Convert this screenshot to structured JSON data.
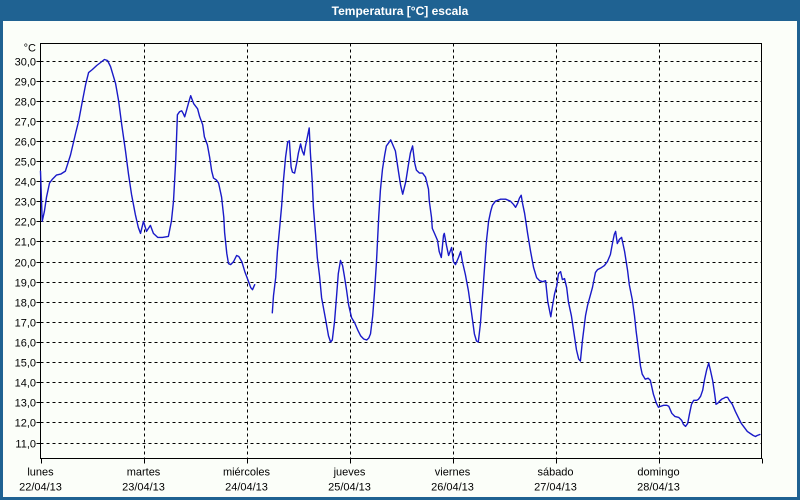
{
  "window": {
    "title": "Temperatura [°C] escala"
  },
  "colors": {
    "chrome": "#1f6292",
    "title_text": "#ffffff",
    "panel_background": "#fbfef9",
    "grid": "#000000",
    "axis": "#000000",
    "line": "#1a1ac8",
    "label_text": "#000000"
  },
  "chart_data": {
    "type": "line",
    "title": "Temperatura [°C] escala",
    "y_unit": "°C",
    "ylabel": "",
    "xlabel": "",
    "ylim": [
      11,
      30
    ],
    "y_tick_step": 1,
    "decimal_separator": ",",
    "grid": "dashed",
    "legend": "none",
    "x_hours_range": [
      0,
      168
    ],
    "x_days": [
      {
        "name": "lunes",
        "date": "22/04/13"
      },
      {
        "name": "martes",
        "date": "23/04/13"
      },
      {
        "name": "miércoles",
        "date": "24/04/13"
      },
      {
        "name": "jueves",
        "date": "25/04/13"
      },
      {
        "name": "viernes",
        "date": "26/04/13"
      },
      {
        "name": "sábado",
        "date": "27/04/13"
      },
      {
        "name": "domingo",
        "date": "28/04/13"
      }
    ],
    "series_name": "Temperatura",
    "segments": [
      [
        [
          0,
          24.5
        ],
        [
          0.4,
          22.0
        ],
        [
          0.9,
          22.5
        ],
        [
          1.4,
          23.2
        ],
        [
          2.1,
          23.9
        ],
        [
          2.8,
          24.1
        ],
        [
          3.7,
          24.3
        ],
        [
          4.7,
          24.35
        ],
        [
          5.8,
          24.5
        ],
        [
          7,
          25.3
        ],
        [
          8.2,
          26.4
        ],
        [
          8.9,
          27.0
        ],
        [
          9.6,
          27.8
        ],
        [
          10.5,
          28.8
        ],
        [
          11.2,
          29.4
        ],
        [
          12.1,
          29.55
        ],
        [
          13.1,
          29.75
        ],
        [
          14,
          29.9
        ],
        [
          14.9,
          30.05
        ],
        [
          15.6,
          30.0
        ],
        [
          16.3,
          29.7
        ],
        [
          17.5,
          28.85
        ],
        [
          18.2,
          28.0
        ],
        [
          18.9,
          26.85
        ],
        [
          19.8,
          25.5
        ],
        [
          20.5,
          24.35
        ],
        [
          21.2,
          23.35
        ],
        [
          22.1,
          22.35
        ],
        [
          22.8,
          21.7
        ],
        [
          23.3,
          21.4
        ],
        [
          24,
          22.0
        ],
        [
          24.7,
          21.5
        ],
        [
          25.6,
          21.8
        ],
        [
          26.3,
          21.4
        ],
        [
          27.3,
          21.2
        ],
        [
          28.4,
          21.2
        ],
        [
          29.8,
          21.25
        ],
        [
          30.5,
          22.0
        ],
        [
          31,
          23.0
        ],
        [
          31.5,
          25.0
        ],
        [
          31.9,
          27.3
        ],
        [
          32.4,
          27.45
        ],
        [
          32.9,
          27.5
        ],
        [
          33.3,
          27.35
        ],
        [
          33.6,
          27.2
        ],
        [
          34,
          27.5
        ],
        [
          34.5,
          27.9
        ],
        [
          35,
          28.25
        ],
        [
          35.7,
          27.85
        ],
        [
          36.6,
          27.6
        ],
        [
          37.1,
          27.2
        ],
        [
          37.8,
          26.8
        ],
        [
          38.2,
          26.2
        ],
        [
          38.9,
          25.8
        ],
        [
          39.4,
          25.2
        ],
        [
          39.9,
          24.5
        ],
        [
          40.3,
          24.15
        ],
        [
          41,
          24.05
        ],
        [
          41.5,
          23.9
        ],
        [
          42.2,
          23.2
        ],
        [
          42.7,
          22.2
        ],
        [
          42.9,
          21.45
        ],
        [
          43.4,
          20.4
        ],
        [
          43.8,
          19.9
        ],
        [
          44.3,
          19.85
        ],
        [
          45,
          20.0
        ],
        [
          45.7,
          20.3
        ],
        [
          46.2,
          20.25
        ],
        [
          46.9,
          20.0
        ],
        [
          47.6,
          19.5
        ],
        [
          48.3,
          19.1
        ],
        [
          49,
          18.7
        ],
        [
          49.4,
          18.6
        ],
        [
          49.9,
          18.85
        ]
      ],
      [
        [
          54,
          17.45
        ],
        [
          54.3,
          18.3
        ],
        [
          54.8,
          19.2
        ],
        [
          55.2,
          20.5
        ],
        [
          55.7,
          21.6
        ],
        [
          56.2,
          22.8
        ],
        [
          56.6,
          24.0
        ],
        [
          57.1,
          25.2
        ],
        [
          57.6,
          25.95
        ],
        [
          58,
          26.0
        ],
        [
          58.4,
          24.7
        ],
        [
          58.7,
          24.45
        ],
        [
          59.2,
          24.4
        ],
        [
          59.7,
          24.9
        ],
        [
          60.1,
          25.4
        ],
        [
          60.6,
          25.85
        ],
        [
          61,
          25.5
        ],
        [
          61.4,
          25.3
        ],
        [
          61.7,
          25.7
        ],
        [
          62.2,
          26.2
        ],
        [
          62.6,
          26.65
        ],
        [
          62.9,
          25.4
        ],
        [
          63.3,
          24.0
        ],
        [
          63.6,
          22.7
        ],
        [
          64.1,
          21.35
        ],
        [
          64.5,
          20.2
        ],
        [
          65,
          19.3
        ],
        [
          65.5,
          18.2
        ],
        [
          66.4,
          17.15
        ],
        [
          67.1,
          16.3
        ],
        [
          67.6,
          16.0
        ],
        [
          68,
          16.1
        ],
        [
          68.5,
          17.0
        ],
        [
          69,
          18.3
        ],
        [
          69.4,
          19.4
        ],
        [
          69.9,
          20.05
        ],
        [
          70.4,
          19.8
        ],
        [
          70.8,
          19.3
        ],
        [
          71.3,
          18.6
        ],
        [
          71.8,
          17.85
        ],
        [
          72.5,
          17.2
        ],
        [
          73.2,
          16.95
        ],
        [
          73.9,
          16.6
        ],
        [
          74.6,
          16.3
        ],
        [
          75.3,
          16.15
        ],
        [
          76,
          16.1
        ],
        [
          76.5,
          16.2
        ],
        [
          76.9,
          16.4
        ],
        [
          77.4,
          17.3
        ],
        [
          77.8,
          18.4
        ],
        [
          78.3,
          20.0
        ],
        [
          78.8,
          22.2
        ],
        [
          79.2,
          23.55
        ],
        [
          79.7,
          24.6
        ],
        [
          80.2,
          25.3
        ],
        [
          80.6,
          25.75
        ],
        [
          81.1,
          25.9
        ],
        [
          81.6,
          26.05
        ],
        [
          82,
          25.85
        ],
        [
          82.7,
          25.5
        ],
        [
          83.4,
          24.5
        ],
        [
          83.9,
          23.8
        ],
        [
          84.4,
          23.35
        ],
        [
          85.1,
          23.95
        ],
        [
          85.8,
          24.9
        ],
        [
          86.2,
          25.4
        ],
        [
          86.7,
          25.75
        ],
        [
          87.2,
          24.9
        ],
        [
          87.6,
          24.55
        ],
        [
          88.3,
          24.4
        ],
        [
          89,
          24.4
        ],
        [
          89.7,
          24.2
        ],
        [
          90.4,
          23.6
        ],
        [
          90.6,
          23.0
        ],
        [
          91.1,
          22.2
        ],
        [
          91.3,
          21.65
        ],
        [
          91.8,
          21.4
        ],
        [
          92.5,
          21.05
        ],
        [
          92.9,
          20.5
        ],
        [
          93.4,
          20.2
        ],
        [
          93.9,
          21.3
        ],
        [
          94.1,
          21.4
        ],
        [
          94.6,
          20.8
        ],
        [
          95.1,
          20.3
        ],
        [
          95.8,
          20.7
        ],
        [
          96.2,
          20.0
        ],
        [
          96.7,
          19.85
        ],
        [
          97.4,
          20.2
        ],
        [
          97.9,
          20.5
        ],
        [
          98.3,
          20.0
        ],
        [
          99,
          19.35
        ],
        [
          99.7,
          18.55
        ],
        [
          100.4,
          17.5
        ],
        [
          101.1,
          16.4
        ],
        [
          101.6,
          16.05
        ],
        [
          102,
          16.0
        ],
        [
          102.5,
          16.9
        ],
        [
          103,
          18.3
        ],
        [
          103.5,
          19.8
        ],
        [
          103.9,
          21.0
        ],
        [
          104.4,
          22.0
        ],
        [
          104.9,
          22.5
        ],
        [
          105.3,
          22.8
        ],
        [
          106,
          23.0
        ],
        [
          107.2,
          23.1
        ],
        [
          108.4,
          23.1
        ],
        [
          109.5,
          23.0
        ],
        [
          110.2,
          22.85
        ],
        [
          110.7,
          22.7
        ],
        [
          111.2,
          22.9
        ],
        [
          111.6,
          23.15
        ],
        [
          112,
          23.3
        ],
        [
          112.3,
          22.9
        ],
        [
          112.8,
          22.4
        ],
        [
          113.5,
          21.4
        ],
        [
          114.2,
          20.5
        ],
        [
          114.9,
          19.7
        ],
        [
          115.6,
          19.2
        ],
        [
          116.3,
          19.05
        ],
        [
          117,
          19.0
        ],
        [
          117.7,
          19.05
        ],
        [
          118.2,
          18.0
        ],
        [
          118.9,
          17.25
        ],
        [
          119.3,
          17.8
        ],
        [
          119.8,
          18.4
        ],
        [
          120.3,
          18.8
        ],
        [
          120.7,
          19.4
        ],
        [
          121.2,
          19.5
        ],
        [
          121.6,
          19.1
        ],
        [
          122.1,
          19.15
        ],
        [
          122.6,
          18.7
        ],
        [
          123,
          18.0
        ],
        [
          123.7,
          17.3
        ],
        [
          124.2,
          16.6
        ],
        [
          124.9,
          15.6
        ],
        [
          125.4,
          15.15
        ],
        [
          125.8,
          15.05
        ],
        [
          126.3,
          16.1
        ],
        [
          127,
          17.3
        ],
        [
          127.5,
          17.85
        ],
        [
          127.9,
          18.15
        ],
        [
          128.6,
          18.7
        ],
        [
          129.3,
          19.45
        ],
        [
          129.8,
          19.6
        ],
        [
          130.7,
          19.7
        ],
        [
          131.4,
          19.8
        ],
        [
          132.1,
          20.0
        ],
        [
          132.8,
          20.35
        ],
        [
          133.3,
          20.95
        ],
        [
          133.7,
          21.35
        ],
        [
          134,
          21.5
        ],
        [
          134.4,
          20.9
        ],
        [
          134.9,
          21.1
        ],
        [
          135.4,
          21.2
        ],
        [
          136.1,
          20.5
        ],
        [
          136.8,
          19.55
        ],
        [
          137.2,
          18.85
        ],
        [
          137.9,
          18.1
        ],
        [
          138.4,
          17.3
        ],
        [
          138.8,
          16.5
        ],
        [
          139.3,
          15.7
        ],
        [
          139.8,
          14.8
        ],
        [
          140.2,
          14.4
        ],
        [
          140.9,
          14.15
        ],
        [
          141.6,
          14.2
        ],
        [
          142.1,
          14.1
        ],
        [
          142.8,
          13.4
        ],
        [
          143.5,
          12.95
        ],
        [
          144,
          12.75
        ],
        [
          144.5,
          12.8
        ],
        [
          145.2,
          12.85
        ],
        [
          145.9,
          12.85
        ],
        [
          146.4,
          12.8
        ],
        [
          147.1,
          12.45
        ],
        [
          147.8,
          12.3
        ],
        [
          148.7,
          12.25
        ],
        [
          149.4,
          12.1
        ],
        [
          149.8,
          11.9
        ],
        [
          150.3,
          11.8
        ],
        [
          150.8,
          11.95
        ],
        [
          151.2,
          12.4
        ],
        [
          151.7,
          12.9
        ],
        [
          152.2,
          13.1
        ],
        [
          152.9,
          13.1
        ],
        [
          153.3,
          13.15
        ],
        [
          153.8,
          13.3
        ],
        [
          154.3,
          13.6
        ],
        [
          154.7,
          14.1
        ],
        [
          155.2,
          14.6
        ],
        [
          155.7,
          14.95
        ],
        [
          156.1,
          14.6
        ],
        [
          156.6,
          14.1
        ],
        [
          157.1,
          13.4
        ],
        [
          157.4,
          12.9
        ],
        [
          157.8,
          12.95
        ],
        [
          158.2,
          13.05
        ],
        [
          158.7,
          13.15
        ],
        [
          159.2,
          13.2
        ],
        [
          159.6,
          13.25
        ],
        [
          160.1,
          13.25
        ],
        [
          160.5,
          13.1
        ],
        [
          161.2,
          12.9
        ],
        [
          161.9,
          12.55
        ],
        [
          162.6,
          12.25
        ],
        [
          163.3,
          11.95
        ],
        [
          164,
          11.75
        ],
        [
          164.7,
          11.55
        ],
        [
          165.4,
          11.45
        ],
        [
          166.1,
          11.35
        ],
        [
          166.6,
          11.3
        ],
        [
          167,
          11.35
        ],
        [
          167.6,
          11.4
        ]
      ]
    ]
  }
}
